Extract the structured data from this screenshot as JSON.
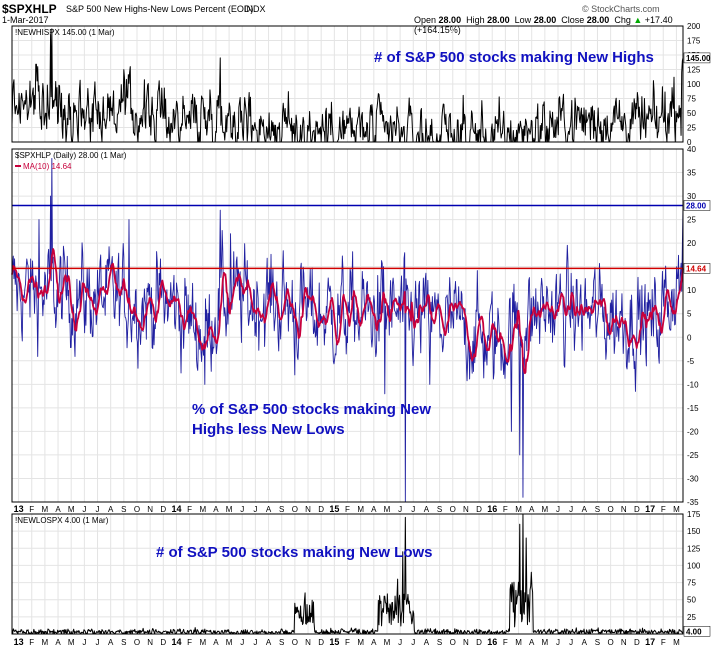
{
  "header": {
    "symbol": "$SPXHLP",
    "description": "S&P 500 New Highs-New Lows Percent (EOD)",
    "exchange": "INDX",
    "date": "1-Mar-2017",
    "open_label": "Open",
    "open": "28.00",
    "high_label": "High",
    "high": "28.00",
    "low_label": "Low",
    "low": "28.00",
    "close_label": "Close",
    "close": "28.00",
    "chg_label": "Chg",
    "chg": "+17.40 (+164.15%)",
    "source": "© StockCharts.com",
    "trend_icon": "triangle-up-icon"
  },
  "chart_data": [
    {
      "type": "line",
      "panel": "top",
      "legend": "!NEWHISPX 145.00 (1 Mar)",
      "annotation": "# of S&P 500 stocks making New Highs",
      "annotation_color": "#1010c0",
      "series_color": "#000000",
      "ylim": [
        0,
        200
      ],
      "ticks": [
        0,
        25,
        50,
        75,
        100,
        125,
        150,
        175,
        200
      ],
      "last_value_label": "145.00",
      "last_value": 145
    },
    {
      "type": "line",
      "panel": "middle",
      "legends": [
        "$SPXHLP (Daily) 28.00 (1 Mar)",
        "MA(10) 14.64"
      ],
      "annotation_lines": [
        "% of S&P 500 stocks making New",
        "Highs less New Lows"
      ],
      "annotation_color": "#1010c0",
      "series": [
        {
          "name": "$SPXHLP (Daily) 28.00 (1 Mar)",
          "color": "#2020a0"
        },
        {
          "name": "MA(10) 14.64",
          "color": "#c8003c"
        }
      ],
      "ylim": [
        -35,
        40
      ],
      "ticks": [
        -35,
        -30,
        -25,
        -20,
        -15,
        -10,
        -5,
        0,
        5,
        10,
        15,
        20,
        25,
        30,
        35,
        40
      ],
      "hlines": [
        {
          "value": 28,
          "color": "#0000b0",
          "label": "28.00"
        },
        {
          "value": 14.64,
          "color": "#d00000",
          "label": "14.64"
        }
      ]
    },
    {
      "type": "line",
      "panel": "bottom",
      "legend": "!NEWLOSPX 4.00 (1 Mar)",
      "annotation": "# of S&P 500 stocks making New Lows",
      "annotation_color": "#1010c0",
      "series_color": "#000000",
      "ylim": [
        0,
        175
      ],
      "ticks": [
        25,
        50,
        75,
        100,
        125,
        150,
        175
      ],
      "last_value_label": "4.00",
      "last_value": 4
    }
  ],
  "x_axis": {
    "labels": [
      "13",
      "F",
      "M",
      "A",
      "M",
      "J",
      "J",
      "A",
      "S",
      "O",
      "N",
      "D",
      "14",
      "F",
      "M",
      "A",
      "M",
      "J",
      "J",
      "A",
      "S",
      "O",
      "N",
      "D",
      "15",
      "F",
      "M",
      "A",
      "M",
      "J",
      "J",
      "A",
      "S",
      "O",
      "N",
      "D",
      "16",
      "F",
      "M",
      "A",
      "M",
      "J",
      "J",
      "A",
      "S",
      "O",
      "N",
      "D",
      "17",
      "F",
      "M"
    ],
    "bold_indices": [
      0,
      12,
      24,
      36,
      48
    ]
  }
}
